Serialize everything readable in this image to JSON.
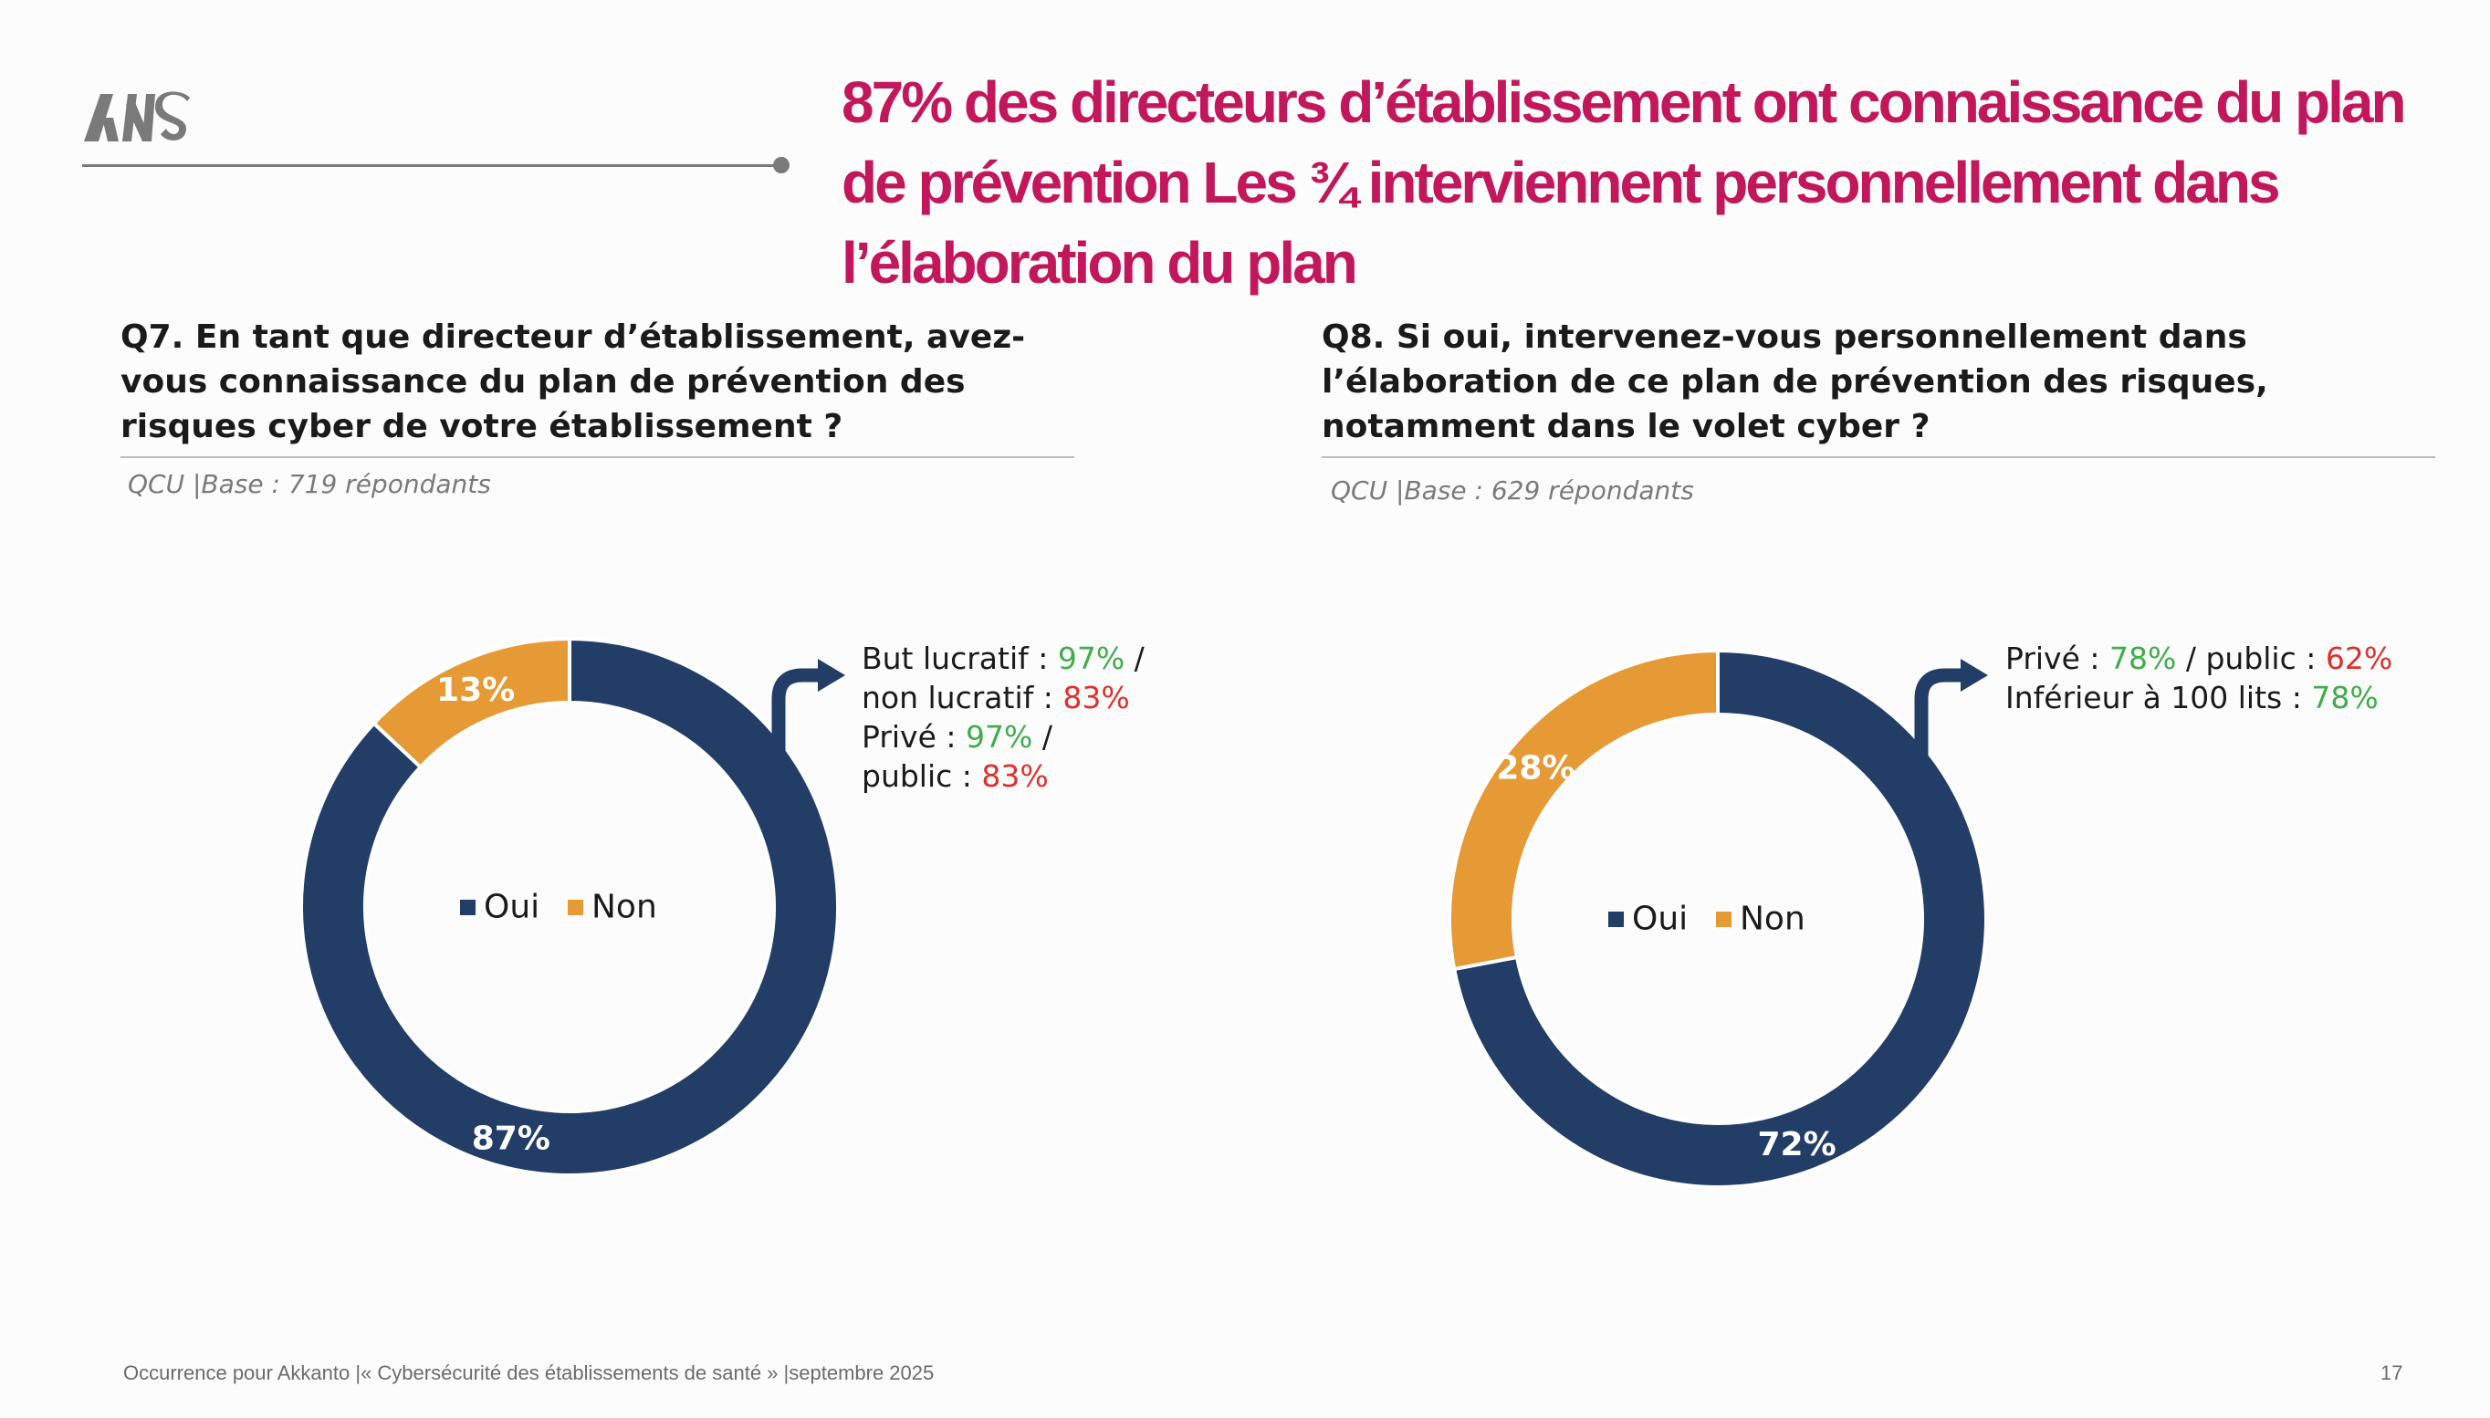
{
  "headline": "87% des directeurs d’établissement ont connaissance du plan de prévention Les ¾  interviennent personnellement dans l’élaboration du plan",
  "colors": {
    "oui": "#223d66",
    "non": "#e69a35",
    "accent": "#c2185b",
    "good": "#3fae4a",
    "bad": "#e0302a"
  },
  "q7": {
    "question": "Q7. En tant que directeur d’établissement, avez-vous connaissance du plan de prévention des risques cyber de votre établissement ?",
    "base": "QCU |Base : 719 répondants",
    "annotations": [
      [
        {
          "t": "But lucratif : ",
          "c": ""
        },
        {
          "t": "97%",
          "c": "green"
        },
        {
          "t": " /",
          "c": ""
        }
      ],
      [
        {
          "t": "non lucratif : ",
          "c": ""
        },
        {
          "t": "83%",
          "c": "red"
        }
      ],
      [
        {
          "t": "Privé : ",
          "c": ""
        },
        {
          "t": "97%",
          "c": "green"
        },
        {
          "t": " /",
          "c": ""
        }
      ],
      [
        {
          "t": "public : ",
          "c": ""
        },
        {
          "t": "83%",
          "c": "red"
        }
      ]
    ]
  },
  "q8": {
    "question": "Q8. Si oui, intervenez-vous personnellement dans l’élaboration de ce plan de prévention des risques, notamment dans le volet cyber ?",
    "base": "QCU |Base : 629 répondants",
    "annotations": [
      [
        {
          "t": "Privé : ",
          "c": ""
        },
        {
          "t": "78%",
          "c": "green"
        },
        {
          "t": " / public : ",
          "c": ""
        },
        {
          "t": "62%",
          "c": "red"
        }
      ],
      [
        {
          "t": "Inférieur à 100 lits : ",
          "c": ""
        },
        {
          "t": "78%",
          "c": "green"
        }
      ]
    ]
  },
  "chart_data": [
    {
      "type": "pie",
      "categories": [
        "Oui",
        "Non"
      ],
      "values": [
        87,
        13
      ],
      "labels": [
        "87%",
        "13%"
      ],
      "legend": "center"
    },
    {
      "type": "pie",
      "categories": [
        "Oui",
        "Non"
      ],
      "values": [
        72,
        28
      ],
      "labels": [
        "72%",
        "28%"
      ],
      "legend": "center"
    }
  ],
  "footer": "Occurrence pour Akkanto |« Cybersécurité des établissements de santé » |septembre 2025",
  "page_number": "17"
}
